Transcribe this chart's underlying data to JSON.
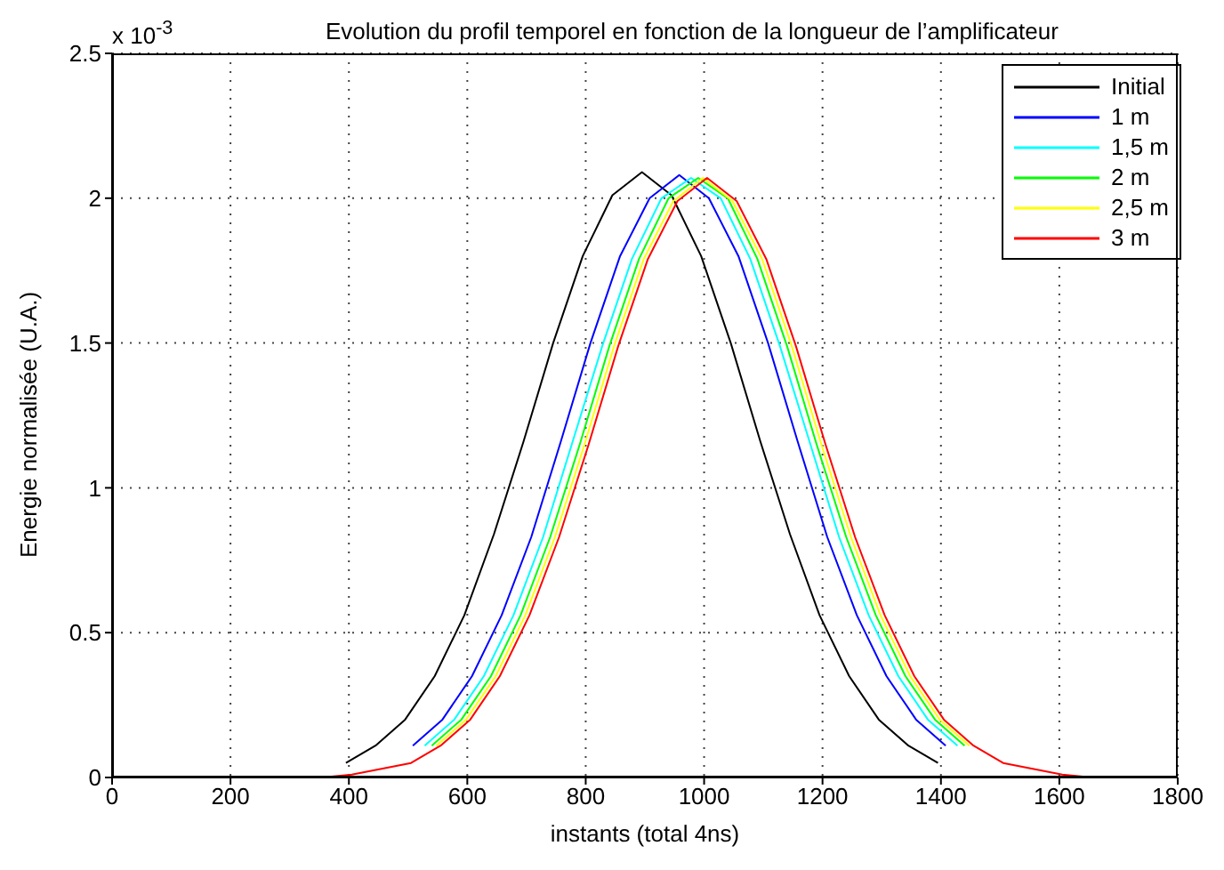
{
  "chart_data": {
    "type": "line",
    "title": "Evolution du profil  temporel en fonction de la longueur de l’amplificateur",
    "xlabel": "instants (total 4ns)",
    "ylabel": "Energie normalisée (U.A.)",
    "annotations": [
      "x 10$^{-3}$"
    ],
    "xlim": [
      0,
      1800
    ],
    "xticks": [
      0,
      200,
      400,
      600,
      800,
      1000,
      1200,
      1400,
      1600,
      1800
    ],
    "ylim": [
      0,
      2.5
    ],
    "yticks": [
      0,
      0.5,
      1,
      1.5,
      2,
      2.5
    ],
    "grid": true,
    "legend": "top right",
    "series": [
      {
        "name": "Initial",
        "color": "#000000",
        "x": [
          395,
          445,
          495,
          545,
          595,
          645,
          695,
          745,
          795,
          845,
          895,
          945,
          995,
          1045,
          1095,
          1145,
          1195,
          1245,
          1295,
          1345,
          1395
        ],
        "values": [
          0.05,
          0.11,
          0.2,
          0.35,
          0.56,
          0.84,
          1.16,
          1.5,
          1.8,
          2.01,
          2.09,
          2.01,
          1.8,
          1.5,
          1.16,
          0.84,
          0.56,
          0.35,
          0.2,
          0.11,
          0.05
        ]
      },
      {
        "name": "1 m",
        "color": "#0000ff",
        "x": [
          508,
          558,
          608,
          658,
          708,
          758,
          808,
          858,
          908,
          958,
          1008,
          1058,
          1108,
          1158,
          1208,
          1258,
          1308,
          1358,
          1408
        ],
        "values": [
          0.11,
          0.2,
          0.35,
          0.56,
          0.83,
          1.16,
          1.5,
          1.8,
          2,
          2.08,
          2,
          1.8,
          1.5,
          1.16,
          0.83,
          0.56,
          0.35,
          0.2,
          0.11
        ]
      },
      {
        "name": "1,5 m",
        "color": "#00ffff",
        "x": [
          528,
          578,
          628,
          678,
          728,
          778,
          828,
          878,
          928,
          978,
          1028,
          1078,
          1128,
          1178,
          1228,
          1278,
          1328,
          1378,
          1428
        ],
        "values": [
          0.11,
          0.2,
          0.35,
          0.56,
          0.83,
          1.16,
          1.49,
          1.79,
          2,
          2.07,
          2,
          1.79,
          1.49,
          1.16,
          0.83,
          0.56,
          0.35,
          0.2,
          0.11
        ]
      },
      {
        "name": "2 m",
        "color": "#00ff00",
        "x": [
          540,
          590,
          640,
          690,
          740,
          790,
          840,
          890,
          940,
          990,
          1040,
          1090,
          1140,
          1190,
          1240,
          1290,
          1340,
          1390,
          1440
        ],
        "values": [
          0.11,
          0.2,
          0.35,
          0.56,
          0.83,
          1.15,
          1.49,
          1.79,
          2,
          2.07,
          2,
          1.79,
          1.49,
          1.15,
          0.83,
          0.56,
          0.35,
          0.2,
          0.11
        ]
      },
      {
        "name": "2,5 m",
        "color": "#ffff00",
        "x": [
          548,
          598,
          648,
          698,
          748,
          798,
          848,
          898,
          948,
          998,
          1048,
          1098,
          1148,
          1198,
          1248,
          1298,
          1348,
          1398,
          1448
        ],
        "values": [
          0.11,
          0.2,
          0.35,
          0.56,
          0.83,
          1.15,
          1.49,
          1.79,
          1.99,
          2.07,
          1.99,
          1.79,
          1.49,
          1.15,
          0.83,
          0.56,
          0.35,
          0.2,
          0.11
        ]
      },
      {
        "name": "3 m",
        "color": "#ff0000",
        "x": [
          0,
          305,
          355,
          405,
          455,
          505,
          555,
          605,
          655,
          705,
          755,
          805,
          855,
          905,
          955,
          1005,
          1055,
          1105,
          1155,
          1205,
          1255,
          1305,
          1355,
          1405,
          1455,
          1505,
          1555,
          1605,
          1655,
          1705,
          1800
        ],
        "values": [
          0,
          0,
          0,
          0.01,
          0.03,
          0.05,
          0.11,
          0.2,
          0.35,
          0.56,
          0.83,
          1.15,
          1.49,
          1.79,
          1.99,
          2.07,
          1.99,
          1.79,
          1.49,
          1.15,
          0.83,
          0.56,
          0.35,
          0.2,
          0.11,
          0.05,
          0.03,
          0.01,
          0,
          0,
          0
        ]
      }
    ]
  }
}
